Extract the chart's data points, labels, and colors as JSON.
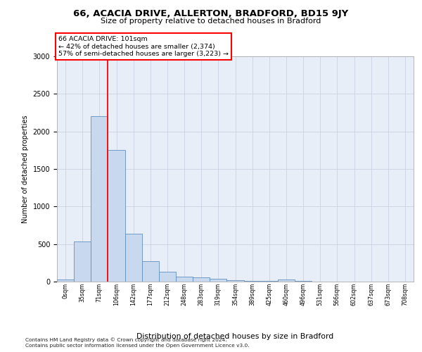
{
  "title1": "66, ACACIA DRIVE, ALLERTON, BRADFORD, BD15 9JY",
  "title2": "Size of property relative to detached houses in Bradford",
  "xlabel": "Distribution of detached houses by size in Bradford",
  "ylabel": "Number of detached properties",
  "annotation_line1": "66 ACACIA DRIVE: 101sqm",
  "annotation_line2": "← 42% of detached houses are smaller (2,374)",
  "annotation_line3": "57% of semi-detached houses are larger (3,223) →",
  "bar_labels": [
    "0sqm",
    "35sqm",
    "71sqm",
    "106sqm",
    "142sqm",
    "177sqm",
    "212sqm",
    "248sqm",
    "283sqm",
    "319sqm",
    "354sqm",
    "389sqm",
    "425sqm",
    "460sqm",
    "496sqm",
    "531sqm",
    "566sqm",
    "602sqm",
    "637sqm",
    "673sqm",
    "708sqm"
  ],
  "bar_values": [
    30,
    530,
    2200,
    1750,
    640,
    270,
    135,
    70,
    60,
    40,
    20,
    10,
    5,
    30,
    10,
    0,
    0,
    0,
    0,
    0,
    0
  ],
  "bar_color": "#c8d8ee",
  "bar_edge_color": "#6090c0",
  "red_line_x": 3.0,
  "ylim": [
    0,
    3000
  ],
  "yticks": [
    0,
    500,
    1000,
    1500,
    2000,
    2500,
    3000
  ],
  "grid_color": "#c4cedd",
  "background_color": "#e8eef8",
  "footer1": "Contains HM Land Registry data © Crown copyright and database right 2024.",
  "footer2": "Contains public sector information licensed under the Open Government Licence v3.0."
}
